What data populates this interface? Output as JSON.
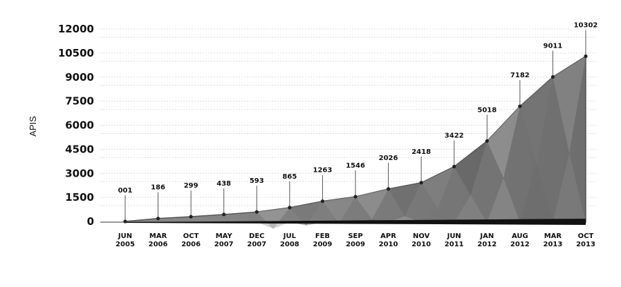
{
  "chart_data": {
    "type": "area",
    "ylabel": "APIS",
    "xlabel": "",
    "ylim": [
      0,
      12000
    ],
    "yticks": [
      0,
      1500,
      3000,
      4500,
      6000,
      7500,
      9000,
      10500,
      12000
    ],
    "ytick_labels": [
      "0",
      "1500",
      "3000",
      "4500",
      "6000",
      "7500",
      "9000",
      "10500",
      "12000"
    ],
    "categories": [
      {
        "month": "JUN",
        "year": "2005"
      },
      {
        "month": "MAR",
        "year": "2006"
      },
      {
        "month": "OCT",
        "year": "2006"
      },
      {
        "month": "MAY",
        "year": "2007"
      },
      {
        "month": "DEC",
        "year": "2007"
      },
      {
        "month": "JUL",
        "year": "2008"
      },
      {
        "month": "FEB",
        "year": "2009"
      },
      {
        "month": "SEP",
        "year": "2009"
      },
      {
        "month": "APR",
        "year": "2010"
      },
      {
        "month": "NOV",
        "year": "2010"
      },
      {
        "month": "JUN",
        "year": "2011"
      },
      {
        "month": "JAN",
        "year": "2012"
      },
      {
        "month": "AUG",
        "year": "2012"
      },
      {
        "month": "MAR",
        "year": "2013"
      },
      {
        "month": "OCT",
        "year": "2013"
      }
    ],
    "values": [
      1,
      186,
      299,
      438,
      593,
      865,
      1263,
      1546,
      2026,
      2418,
      3422,
      5018,
      7182,
      9011,
      10302
    ],
    "data_labels": [
      "001",
      "186",
      "299",
      "438",
      "593",
      "865",
      "1263",
      "1546",
      "2026",
      "2418",
      "3422",
      "5018",
      "7182",
      "9011",
      "10302"
    ],
    "grid": true,
    "colors": {
      "area": "#7a7a7a",
      "area_edge": "#555555",
      "point": "#222222",
      "base": "#111111"
    }
  }
}
